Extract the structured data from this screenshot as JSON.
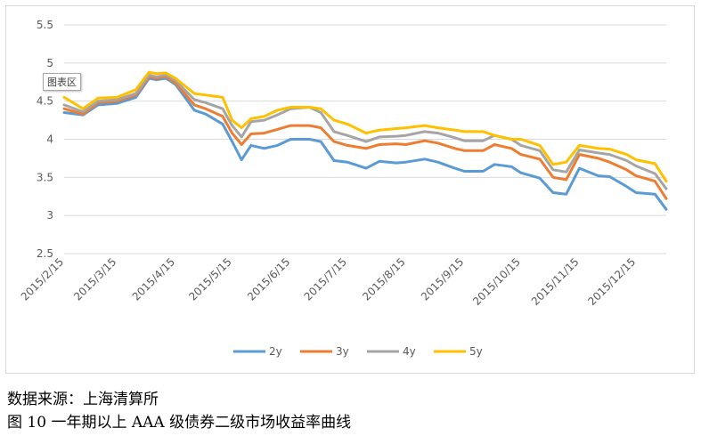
{
  "chart_area_tag": "图表区",
  "source_text": "数据来源：上海清算所",
  "figure_caption": "图 10   一年期以上 AAA 级债券二级市场收益率曲线",
  "chart_data": {
    "type": "line",
    "title": "",
    "xlabel": "",
    "ylabel": "",
    "ylim": [
      2.5,
      5.5
    ],
    "yticks": [
      "2.5",
      "3",
      "3.5",
      "4",
      "4.5",
      "5",
      "5.5"
    ],
    "x_tick_labels": [
      "2015/2/15",
      "2015/3/15",
      "2015/4/15",
      "2015/5/15",
      "2015/6/15",
      "2015/7/15",
      "2015/8/15",
      "2015/9/15",
      "2015/10/15",
      "2015/11/15",
      "2015/12/15"
    ],
    "x": [
      "2015/2/15",
      "2015/2/25",
      "2015/3/5",
      "2015/3/15",
      "2015/3/25",
      "2015/4/1",
      "2015/4/5",
      "2015/4/10",
      "2015/4/15",
      "2015/4/25",
      "2015/5/1",
      "2015/5/10",
      "2015/5/15",
      "2015/5/20",
      "2015/5/25",
      "2015/6/1",
      "2015/6/8",
      "2015/6/15",
      "2015/6/25",
      "2015/7/1",
      "2015/7/8",
      "2015/7/15",
      "2015/7/25",
      "2015/8/1",
      "2015/8/10",
      "2015/8/15",
      "2015/8/25",
      "2015/9/1",
      "2015/9/10",
      "2015/9/15",
      "2015/9/25",
      "2015/10/1",
      "2015/10/10",
      "2015/10/15",
      "2015/10/25",
      "2015/11/1",
      "2015/11/8",
      "2015/11/15",
      "2015/11/25",
      "2015/12/1",
      "2015/12/10",
      "2015/12/15",
      "2015/12/25",
      "2015/12/31"
    ],
    "grid": true,
    "legend_position": "bottom",
    "series": [
      {
        "name": "2y",
        "color": "#5B9BD5",
        "values": [
          4.35,
          4.32,
          4.45,
          4.47,
          4.55,
          4.8,
          4.78,
          4.8,
          4.72,
          4.38,
          4.33,
          4.2,
          3.97,
          3.73,
          3.92,
          3.88,
          3.92,
          4.0,
          4.0,
          3.97,
          3.72,
          3.7,
          3.62,
          3.71,
          3.69,
          3.7,
          3.74,
          3.7,
          3.62,
          3.58,
          3.58,
          3.67,
          3.64,
          3.56,
          3.49,
          3.3,
          3.28,
          3.62,
          3.52,
          3.51,
          3.38,
          3.3,
          3.28,
          3.08
        ]
      },
      {
        "name": "3y",
        "color": "#ED7D31",
        "values": [
          4.4,
          4.33,
          4.48,
          4.5,
          4.58,
          4.82,
          4.8,
          4.82,
          4.74,
          4.45,
          4.4,
          4.3,
          4.08,
          3.93,
          4.07,
          4.08,
          4.13,
          4.18,
          4.18,
          4.15,
          3.97,
          3.92,
          3.88,
          3.93,
          3.94,
          3.93,
          3.98,
          3.95,
          3.88,
          3.85,
          3.85,
          3.93,
          3.88,
          3.8,
          3.74,
          3.5,
          3.47,
          3.8,
          3.75,
          3.7,
          3.6,
          3.52,
          3.45,
          3.22
        ]
      },
      {
        "name": "4y",
        "color": "#A5A5A5",
        "values": [
          4.45,
          4.36,
          4.5,
          4.52,
          4.6,
          4.84,
          4.82,
          4.84,
          4.77,
          4.52,
          4.48,
          4.4,
          4.18,
          4.03,
          4.23,
          4.25,
          4.32,
          4.4,
          4.42,
          4.35,
          4.1,
          4.05,
          3.97,
          4.03,
          4.04,
          4.05,
          4.1,
          4.08,
          4.02,
          3.98,
          3.98,
          4.05,
          4.0,
          3.92,
          3.85,
          3.6,
          3.57,
          3.86,
          3.82,
          3.8,
          3.72,
          3.65,
          3.55,
          3.35
        ]
      },
      {
        "name": "5y",
        "color": "#FFC000",
        "values": [
          4.55,
          4.4,
          4.54,
          4.55,
          4.65,
          4.88,
          4.86,
          4.87,
          4.8,
          4.6,
          4.58,
          4.55,
          4.25,
          4.15,
          4.27,
          4.3,
          4.38,
          4.42,
          4.42,
          4.4,
          4.25,
          4.2,
          4.08,
          4.12,
          4.14,
          4.15,
          4.18,
          4.15,
          4.12,
          4.1,
          4.1,
          4.05,
          4.0,
          4.0,
          3.92,
          3.67,
          3.7,
          3.92,
          3.88,
          3.87,
          3.8,
          3.73,
          3.68,
          3.45
        ]
      }
    ]
  }
}
